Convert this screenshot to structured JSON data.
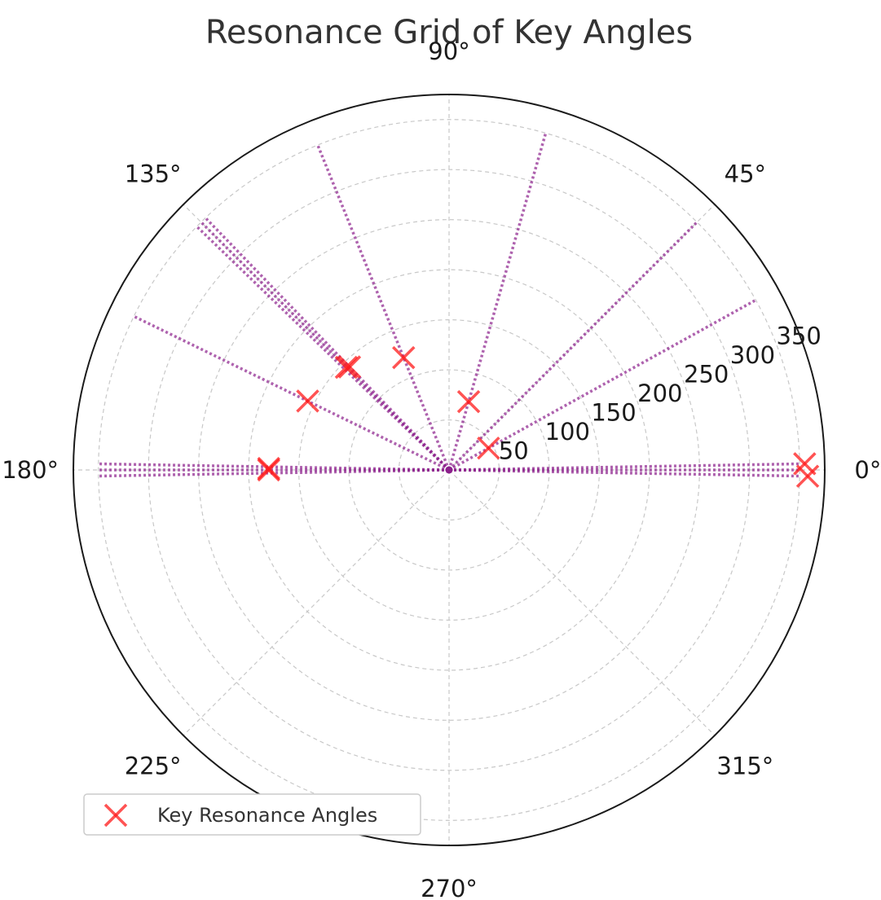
{
  "chart_data": {
    "type": "scatter",
    "projection": "polar",
    "title": "Resonance Grid of Key Angles",
    "angle_unit": "degrees",
    "theta_ticks": [
      0,
      45,
      90,
      135,
      180,
      225,
      270,
      315
    ],
    "theta_tick_labels": [
      "0°",
      "45°",
      "90°",
      "135°",
      "180°",
      "225°",
      "270°",
      "315°"
    ],
    "r_ticks": [
      50,
      100,
      150,
      200,
      250,
      300,
      350
    ],
    "r_tick_labels": [
      "50",
      "100",
      "150",
      "200",
      "250",
      "300",
      "350"
    ],
    "rlim": [
      0,
      375
    ],
    "grid": true,
    "legend": {
      "position": "lower-left",
      "entries": [
        "Key Resonance Angles"
      ]
    },
    "series": [
      {
        "name": "Key Resonance Angles",
        "marker": "x",
        "color": "#ff1a1a",
        "points": [
          {
            "theta": 1,
            "r": 355
          },
          {
            "theta": 359,
            "r": 358
          },
          {
            "theta": 180,
            "r": 180
          },
          {
            "theta": 179.5,
            "r": 180
          },
          {
            "theta": 135,
            "r": 145
          },
          {
            "theta": 134,
            "r": 143
          },
          {
            "theta": 154,
            "r": 157
          },
          {
            "theta": 112,
            "r": 121
          },
          {
            "theta": 74,
            "r": 71
          },
          {
            "theta": 29,
            "r": 45
          }
        ]
      }
    ],
    "resonance_lines": {
      "color": "#8b1f8b",
      "style": "dotted",
      "length": 350,
      "angles": [
        0,
        1,
        359,
        180,
        179,
        181,
        135,
        134,
        136,
        154,
        112,
        74,
        29,
        45
      ]
    }
  }
}
